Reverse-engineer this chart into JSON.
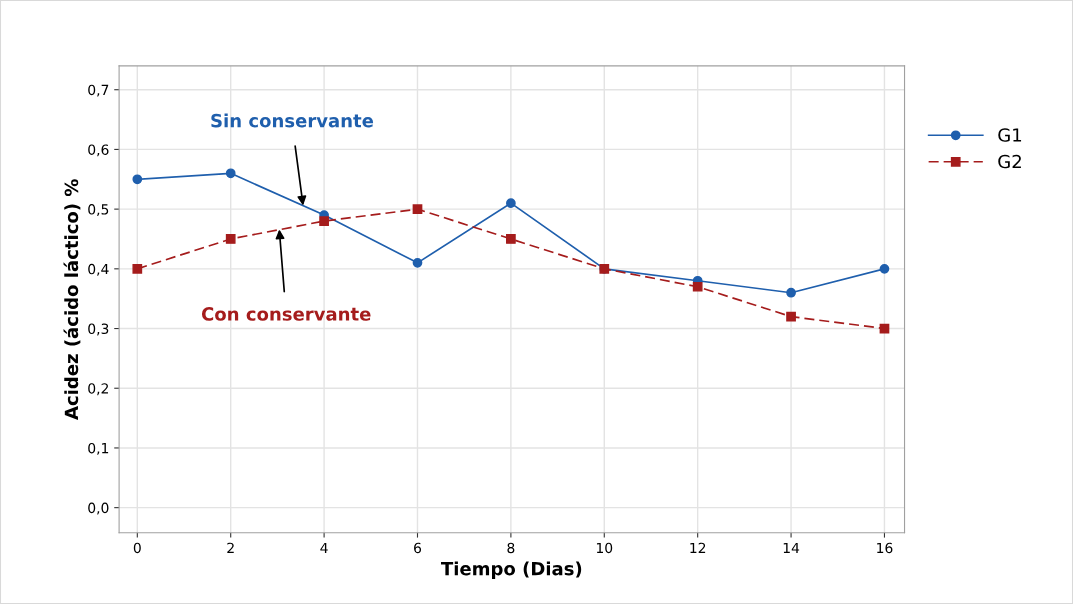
{
  "chart_data": {
    "type": "line",
    "xlabel": "Tiempo (Dias)",
    "ylabel": "Acidez (ácido láctico) %",
    "x": [
      0,
      2,
      4,
      6,
      8,
      10,
      12,
      14,
      16
    ],
    "series": [
      {
        "name": "G1",
        "color": "#1f5fad",
        "marker": "circle",
        "line_style": "solid",
        "values": [
          0.55,
          0.56,
          0.49,
          0.41,
          0.51,
          0.4,
          0.38,
          0.36,
          0.4
        ]
      },
      {
        "name": "G2",
        "color": "#a51c1c",
        "marker": "square",
        "line_style": "dashed",
        "values": [
          0.4,
          0.45,
          0.48,
          0.5,
          0.45,
          0.4,
          0.37,
          0.32,
          0.3
        ]
      }
    ],
    "xlim": [
      -0.39,
      16.43
    ],
    "xticks": [
      0,
      2,
      4,
      6,
      8,
      10,
      12,
      14,
      16
    ],
    "ylim": [
      -0.042,
      0.74
    ],
    "yticks": [
      {
        "value": 0,
        "label": "0,0"
      },
      {
        "value": 0.1,
        "label": "0,1"
      },
      {
        "value": 0.2,
        "label": "0,2"
      },
      {
        "value": 0.3,
        "label": "0,3"
      },
      {
        "value": 0.4,
        "label": "0,4"
      },
      {
        "value": 0.5,
        "label": "0,5"
      },
      {
        "value": 0.6,
        "label": "0,6"
      },
      {
        "value": 0.7,
        "label": "0,7"
      }
    ],
    "annotations": [
      {
        "text": "Sin conservante",
        "x": 3.55,
        "y": 0.506
      },
      {
        "text": "Con conservante",
        "x": 3.04,
        "y": 0.466
      }
    ],
    "grid": true,
    "legend": "right"
  }
}
